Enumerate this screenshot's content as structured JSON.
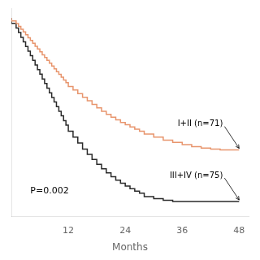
{
  "chart_data": {
    "type": "line",
    "line_style": "step",
    "xlabel": "Months",
    "xlim": [
      0,
      50
    ],
    "xticks": [
      12,
      24,
      36,
      48
    ],
    "ylim": [
      0,
      1.05
    ],
    "grid": false,
    "tick_labels": "x",
    "annotations": [
      "P=0.002"
    ],
    "series": [
      {
        "name": "I+II (n=71)",
        "color": "#E8956D",
        "x": [
          0,
          1,
          1.5,
          2,
          2.5,
          3,
          3.5,
          4,
          4.5,
          5,
          5.5,
          6,
          6.5,
          7,
          7.5,
          8,
          8.5,
          9,
          9.5,
          10,
          10.5,
          11,
          11.5,
          12,
          13,
          14,
          15,
          16,
          17,
          18,
          19,
          20,
          21,
          22,
          23,
          24,
          25,
          26,
          27,
          28,
          30,
          32,
          34,
          36,
          38,
          40,
          42,
          44,
          48
        ],
        "values": [
          1.0,
          0.985,
          0.972,
          0.958,
          0.944,
          0.93,
          0.916,
          0.901,
          0.887,
          0.873,
          0.858,
          0.844,
          0.83,
          0.815,
          0.801,
          0.787,
          0.773,
          0.758,
          0.744,
          0.73,
          0.716,
          0.702,
          0.688,
          0.674,
          0.655,
          0.637,
          0.619,
          0.601,
          0.583,
          0.565,
          0.547,
          0.53,
          0.515,
          0.5,
          0.487,
          0.474,
          0.462,
          0.451,
          0.44,
          0.43,
          0.415,
          0.4,
          0.385,
          0.373,
          0.362,
          0.352,
          0.345,
          0.34,
          0.335
        ]
      },
      {
        "name": "III+IV (n=75)",
        "color": "#2a2a2a",
        "x": [
          0,
          1,
          1.5,
          2,
          2.5,
          3,
          3.5,
          4,
          4.5,
          5,
          5.5,
          6,
          6.5,
          7,
          7.5,
          8,
          8.5,
          9,
          9.5,
          10,
          10.5,
          11,
          11.5,
          12,
          13,
          14,
          15,
          16,
          17,
          18,
          19,
          20,
          21,
          22,
          23,
          24,
          25,
          26,
          27,
          28,
          30,
          32,
          34,
          36,
          48
        ],
        "values": [
          1.0,
          0.973,
          0.95,
          0.927,
          0.903,
          0.88,
          0.857,
          0.833,
          0.81,
          0.787,
          0.763,
          0.74,
          0.717,
          0.693,
          0.67,
          0.647,
          0.623,
          0.6,
          0.577,
          0.553,
          0.53,
          0.507,
          0.483,
          0.46,
          0.43,
          0.4,
          0.37,
          0.34,
          0.313,
          0.287,
          0.263,
          0.24,
          0.22,
          0.2,
          0.183,
          0.167,
          0.153,
          0.14,
          0.128,
          0.117,
          0.1,
          0.09,
          0.082,
          0.075,
          0.075
        ]
      }
    ]
  }
}
